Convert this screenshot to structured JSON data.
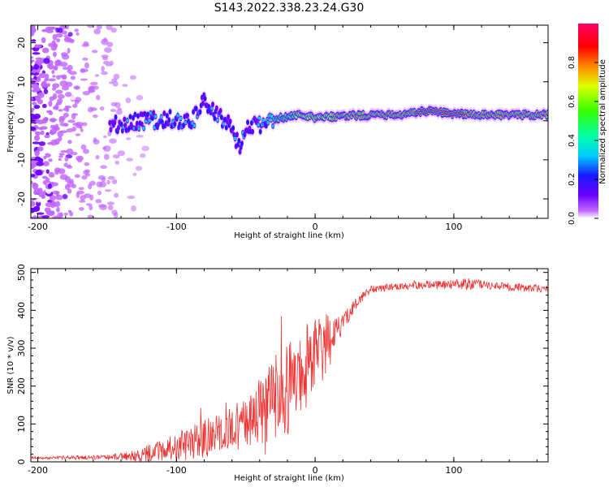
{
  "title": "S143.2022.338.23.24.G30",
  "chart_data": [
    {
      "type": "heatmap",
      "title": "S143.2022.338.23.24.G30",
      "xlabel": "Height of straight line (km)",
      "ylabel": "Frequency (Hz)",
      "xlim": [
        -205,
        168
      ],
      "ylim": [
        -25,
        24.5
      ],
      "xticks": [
        -200,
        -100,
        0,
        100
      ],
      "yticks": [
        -20,
        -10,
        0,
        10,
        20
      ],
      "colorbar": {
        "label": "Normalized spectral amplitude",
        "range": [
          0,
          1
        ],
        "ticks": [
          0.0,
          0.2,
          0.4,
          0.6,
          0.8
        ],
        "colormap": "hsv-rainbow (purple-blue-cyan-green-yellow-red-magenta)"
      },
      "ridge": {
        "description": "Spectral line near 0-2 Hz; noisy scattered signal below -140 km, coherent line above -30 km",
        "x": [
          -145,
          -120,
          -100,
          -90,
          -80,
          -70,
          -60,
          -55,
          -50,
          -40,
          -30,
          -10,
          0,
          20,
          40,
          60,
          80,
          100,
          120,
          140,
          168
        ],
        "freq": [
          -1,
          0,
          0.5,
          -1,
          5,
          1,
          -1,
          -7,
          -2,
          -1,
          0.5,
          1.5,
          0.8,
          1.2,
          1.5,
          1.6,
          2.5,
          1.8,
          1.5,
          1.5,
          1.5
        ],
        "amplitude": [
          0.2,
          0.35,
          0.35,
          0.3,
          0.3,
          0.3,
          0.3,
          0.3,
          0.25,
          0.3,
          0.6,
          0.7,
          0.75,
          0.8,
          0.8,
          0.85,
          0.9,
          0.9,
          0.85,
          0.8,
          0.8
        ]
      }
    },
    {
      "type": "line",
      "xlabel": "Height of straight line (km)",
      "ylabel": "SNR (10 * v/v)",
      "xlim": [
        -205,
        168
      ],
      "ylim": [
        0,
        510
      ],
      "xticks": [
        -200,
        -100,
        0,
        100
      ],
      "yticks": [
        0,
        100,
        200,
        300,
        400,
        500
      ],
      "color": "#ee3333",
      "series": [
        {
          "name": "SNR",
          "x": [
            -205,
            -150,
            -130,
            -110,
            -90,
            -70,
            -50,
            -40,
            -30,
            -20,
            -10,
            -5,
            0,
            5,
            10,
            15,
            20,
            25,
            30,
            35,
            40,
            50,
            60,
            70,
            80,
            90,
            100,
            110,
            120,
            130,
            140,
            150,
            160,
            168
          ],
          "base": [
            10,
            12,
            15,
            30,
            50,
            75,
            100,
            130,
            160,
            190,
            230,
            260,
            280,
            300,
            315,
            340,
            365,
            395,
            420,
            440,
            455,
            460,
            462,
            465,
            468,
            468,
            468,
            470,
            468,
            465,
            462,
            460,
            458,
            455
          ],
          "noise": [
            4,
            6,
            15,
            30,
            45,
            55,
            70,
            90,
            120,
            120,
            110,
            110,
            110,
            100,
            70,
            40,
            25,
            20,
            15,
            12,
            10,
            10,
            10,
            10,
            10,
            12,
            12,
            15,
            12,
            10,
            10,
            10,
            10,
            10
          ]
        }
      ]
    }
  ]
}
